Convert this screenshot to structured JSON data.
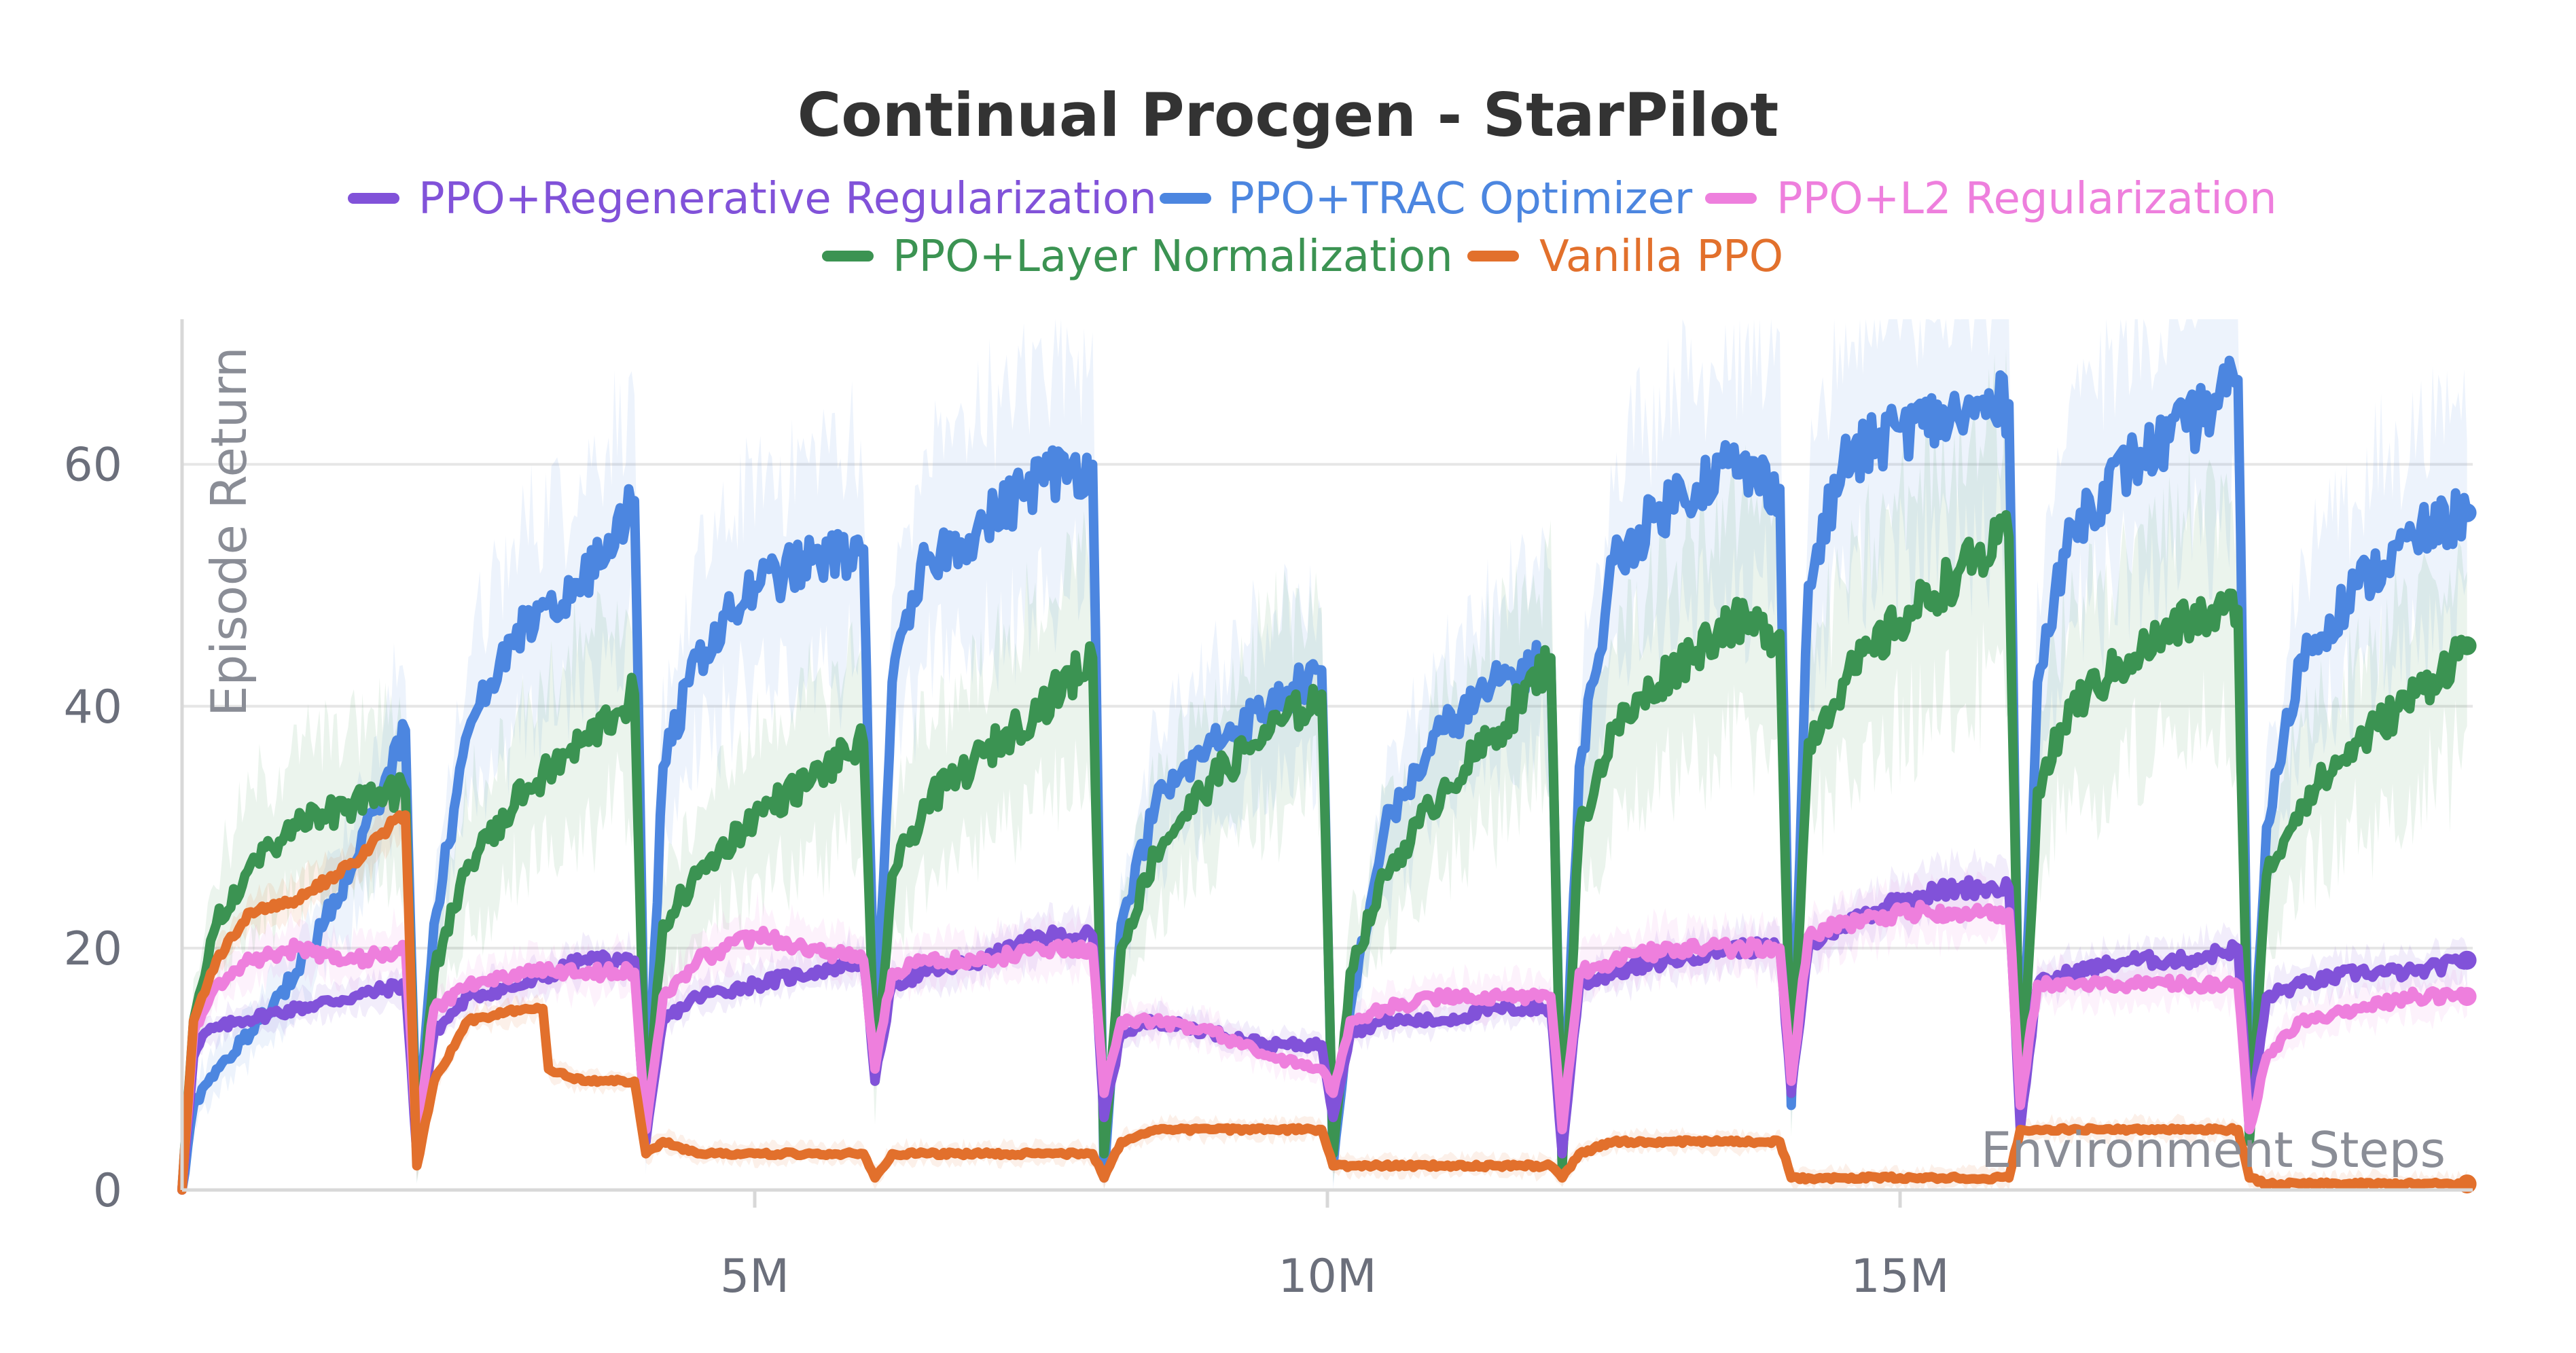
{
  "chart_data": {
    "type": "line",
    "title": "Continual Procgen - StarPilot",
    "xlabel": "Environment Steps",
    "ylabel": "Episode Return",
    "xlim": [
      0,
      20000000
    ],
    "ylim": [
      0,
      72
    ],
    "x_ticks": [
      {
        "value": 5000000,
        "label": "5M"
      },
      {
        "value": 10000000,
        "label": "10M"
      },
      {
        "value": 15000000,
        "label": "15M"
      }
    ],
    "y_ticks": [
      {
        "value": 0,
        "label": "0"
      },
      {
        "value": 20,
        "label": "20"
      },
      {
        "value": 40,
        "label": "40"
      },
      {
        "value": 60,
        "label": "60"
      }
    ],
    "grid": true,
    "legend_position": "top",
    "series": [
      {
        "name": "PPO+Regenerative Regularization",
        "color": "#8152d9",
        "x": [
          0,
          100000,
          200000,
          500000,
          1000000,
          1500000,
          1950000,
          2050000,
          2200000,
          2500000,
          3000000,
          3500000,
          3950000,
          4050000,
          4200000,
          4500000,
          5000000,
          5500000,
          5950000,
          6050000,
          6200000,
          6500000,
          7000000,
          7500000,
          7950000,
          8050000,
          8200000,
          8500000,
          9000000,
          9500000,
          9950000,
          10050000,
          10200000,
          10500000,
          11000000,
          11500000,
          11950000,
          12050000,
          12200000,
          12500000,
          13000000,
          13500000,
          13950000,
          14050000,
          14200000,
          14500000,
          15000000,
          15500000,
          15950000,
          16050000,
          16200000,
          16500000,
          17000000,
          17500000,
          17950000,
          18050000,
          18200000,
          18500000,
          19000000,
          19500000,
          19950000
        ],
        "values": [
          0,
          11,
          13,
          14,
          15,
          16,
          17,
          3,
          13,
          16,
          17,
          19,
          19,
          4,
          14,
          16,
          17,
          18,
          19,
          9,
          17,
          18,
          19,
          21,
          21,
          6,
          13,
          14,
          13,
          12,
          12,
          6,
          13,
          14,
          14,
          15,
          15,
          3,
          17,
          18,
          19,
          20,
          20,
          8,
          20,
          22,
          24,
          25,
          25,
          5,
          17,
          18,
          19,
          19,
          20,
          5,
          16,
          17,
          18,
          18,
          19
        ]
      },
      {
        "name": "PPO+TRAC Optimizer",
        "color": "#4c86e0",
        "x": [
          0,
          100000,
          300000,
          600000,
          1000000,
          1500000,
          1950000,
          2050000,
          2200000,
          2500000,
          3000000,
          3500000,
          3950000,
          4050000,
          4200000,
          4500000,
          5000000,
          5500000,
          5950000,
          6050000,
          6200000,
          6500000,
          7000000,
          7500000,
          7950000,
          8050000,
          8200000,
          8500000,
          9000000,
          9500000,
          9950000,
          10050000,
          10200000,
          10500000,
          11000000,
          11500000,
          11950000,
          12050000,
          12200000,
          12500000,
          13000000,
          13500000,
          13950000,
          14050000,
          14200000,
          14500000,
          15000000,
          15500000,
          15950000,
          16050000,
          16200000,
          16500000,
          17000000,
          17500000,
          17950000,
          18050000,
          18200000,
          18500000,
          19000000,
          19500000,
          19950000
        ],
        "values": [
          0,
          7,
          10,
          13,
          18,
          27,
          38,
          3,
          22,
          38,
          47,
          50,
          57,
          4,
          35,
          44,
          50,
          52,
          53,
          11,
          42,
          52,
          55,
          59,
          60,
          1,
          22,
          32,
          37,
          40,
          43,
          2,
          15,
          30,
          38,
          42,
          44,
          2,
          35,
          52,
          57,
          60,
          58,
          7,
          50,
          60,
          63,
          64,
          65,
          5,
          42,
          55,
          60,
          63,
          67,
          4,
          30,
          44,
          50,
          54,
          56
        ]
      },
      {
        "name": "PPO+L2 Regularization",
        "color": "#ee7fdd",
        "x": [
          0,
          100000,
          300000,
          600000,
          1000000,
          1500000,
          1950000,
          2050000,
          2200000,
          2500000,
          3000000,
          3500000,
          3950000,
          4050000,
          4200000,
          4500000,
          5000000,
          5500000,
          5950000,
          6050000,
          6200000,
          6500000,
          7000000,
          7500000,
          7950000,
          8050000,
          8200000,
          8500000,
          9000000,
          9500000,
          9950000,
          10050000,
          10200000,
          10500000,
          11000000,
          11500000,
          11950000,
          12050000,
          12200000,
          12500000,
          13000000,
          13500000,
          13950000,
          14050000,
          14200000,
          14500000,
          15000000,
          15500000,
          15950000,
          16050000,
          16200000,
          16500000,
          17000000,
          17500000,
          17950000,
          18050000,
          18200000,
          18500000,
          19000000,
          19500000,
          19950000
        ],
        "values": [
          0,
          13,
          17,
          19,
          20,
          19,
          20,
          4,
          15,
          17,
          18,
          18,
          18,
          5,
          16,
          19,
          21,
          20,
          19,
          10,
          18,
          19,
          19,
          20,
          20,
          8,
          14,
          14,
          13,
          11,
          10,
          8,
          14,
          15,
          16,
          16,
          16,
          5,
          18,
          19,
          20,
          20,
          20,
          9,
          21,
          22,
          23,
          23,
          23,
          7,
          17,
          17,
          17,
          17,
          17,
          5,
          11,
          14,
          15,
          16,
          16
        ]
      },
      {
        "name": "PPO+Layer Normalization",
        "color": "#3b9352",
        "x": [
          0,
          100000,
          300000,
          600000,
          1000000,
          1500000,
          1950000,
          2050000,
          2200000,
          2500000,
          3000000,
          3500000,
          3950000,
          4050000,
          4200000,
          4500000,
          5000000,
          5500000,
          5950000,
          6050000,
          6200000,
          6500000,
          7000000,
          7500000,
          7950000,
          8050000,
          8200000,
          8500000,
          9000000,
          9500000,
          9950000,
          10050000,
          10200000,
          10500000,
          11000000,
          11500000,
          11950000,
          12050000,
          12200000,
          12500000,
          13000000,
          13500000,
          13950000,
          14050000,
          14200000,
          14500000,
          15000000,
          15500000,
          15950000,
          16050000,
          16200000,
          16500000,
          17000000,
          17500000,
          17950000,
          18050000,
          18200000,
          18500000,
          19000000,
          19500000,
          19950000
        ],
        "values": [
          0,
          14,
          22,
          27,
          30,
          32,
          33,
          3,
          18,
          27,
          33,
          37,
          41,
          5,
          22,
          26,
          31,
          34,
          37,
          9,
          26,
          32,
          36,
          40,
          44,
          3,
          20,
          28,
          34,
          38,
          41,
          3,
          18,
          26,
          33,
          38,
          44,
          2,
          30,
          38,
          43,
          47,
          46,
          8,
          37,
          42,
          47,
          51,
          54,
          6,
          33,
          40,
          44,
          47,
          48,
          4,
          26,
          32,
          37,
          41,
          45
        ]
      },
      {
        "name": "Vanilla PPO",
        "color": "#e2702c",
        "x": [
          0,
          100000,
          300000,
          600000,
          1000000,
          1500000,
          1900000,
          1950000,
          2050000,
          2200000,
          2500000,
          3000000,
          3150000,
          3200000,
          3500000,
          3950000,
          4050000,
          4200000,
          4500000,
          5000000,
          5500000,
          5950000,
          6050000,
          6200000,
          6500000,
          7000000,
          7500000,
          7950000,
          8050000,
          8200000,
          8500000,
          9000000,
          9500000,
          9950000,
          10050000,
          10200000,
          10500000,
          11000000,
          11500000,
          11950000,
          12050000,
          12200000,
          12500000,
          13000000,
          13500000,
          13950000,
          14050000,
          14200000,
          14500000,
          15000000,
          15500000,
          15950000,
          16050000,
          16200000,
          16500000,
          17000000,
          17500000,
          17950000,
          18050000,
          18200000,
          18500000,
          19000000,
          19500000,
          19950000
        ],
        "values": [
          0,
          14,
          19,
          23,
          24,
          27,
          31,
          31,
          2,
          9,
          14,
          15,
          15,
          10,
          9,
          9,
          3,
          4,
          3,
          3,
          3,
          3,
          1,
          3,
          3,
          3,
          3,
          3,
          1,
          4,
          5,
          5,
          5,
          5,
          2,
          2,
          2,
          2,
          2,
          2,
          1,
          3,
          4,
          4,
          4,
          4,
          1,
          1,
          1,
          1,
          1,
          1,
          5,
          5,
          5,
          5,
          5,
          5,
          1,
          0.5,
          0.5,
          0.5,
          0.5,
          0.5
        ]
      }
    ]
  }
}
